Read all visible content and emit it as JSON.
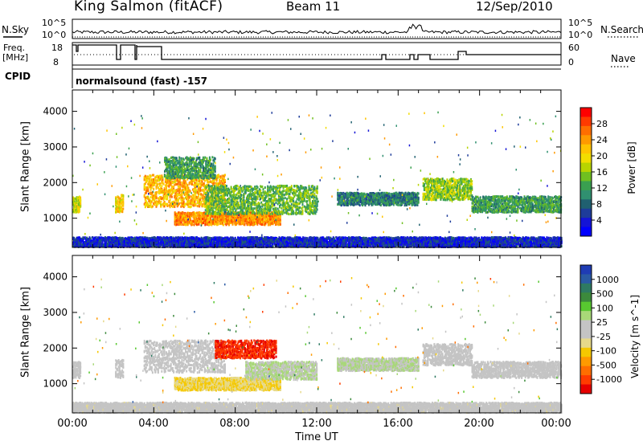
{
  "header": {
    "station": "King Salmon (fitACF)",
    "beam": "Beam 11",
    "date": "12/Sep/2010"
  },
  "status_panels": {
    "nsky_label": "N.Sky",
    "nsearch_label": "N.Search",
    "freq_label": "Freq.",
    "freq_unit": "[MHz]",
    "nave_label": "Nave",
    "cpid_label": "CPID",
    "cpid_text": "normalsound (fast) -157",
    "noise_ticks": [
      "10^5",
      "10^0"
    ],
    "freq_ticks": [
      "18",
      "8"
    ],
    "nave_ticks": [
      "60",
      "0"
    ]
  },
  "power_scale": {
    "label": "Power [dB]",
    "ticks": [
      "28",
      "24",
      "20",
      "16",
      "12",
      "8",
      "4"
    ],
    "colors": [
      "#ff0000",
      "#ff3a00",
      "#ff6e00",
      "#ff9a00",
      "#ffc400",
      "#f2dd00",
      "#b8d400",
      "#70c020",
      "#3aa050",
      "#309070",
      "#206070",
      "#1e3c9a",
      "#1414d6",
      "#0000ff"
    ]
  },
  "velocity_scale": {
    "label": "Velocity [m s^-1]",
    "ticks": [
      "1000",
      "500",
      "100",
      "25",
      "-25",
      "-100",
      "-500",
      "-1000"
    ],
    "colors": [
      "#1f3cb4",
      "#2a5aa4",
      "#2e7a62",
      "#3c8a3c",
      "#58c830",
      "#a8d878",
      "#c4c4c4",
      "#c4c4c4",
      "#e6d98a",
      "#f5c800",
      "#ff9a00",
      "#ff6e00",
      "#ff3c00",
      "#e60000"
    ]
  },
  "axes": {
    "ylabel": "Slant Range [km]",
    "yticks": [
      "1000",
      "2000",
      "3000",
      "4000"
    ],
    "xlabel": "Time UT",
    "xticks": [
      "00:00",
      "04:00",
      "08:00",
      "12:00",
      "16:00",
      "20:00",
      "00:00"
    ]
  },
  "chart_data": [
    {
      "type": "heatmap",
      "title": "Power",
      "xlabel": "Time UT",
      "ylabel": "Slant Range [km]",
      "xlim": [
        "00:00",
        "24:00"
      ],
      "ylim": [
        180,
        4600
      ],
      "colorbar": {
        "label": "Power [dB]",
        "ticks": [
          4,
          8,
          12,
          16,
          20,
          24,
          28
        ]
      },
      "regions": [
        {
          "t_start": 0.0,
          "t_end": 0.4,
          "range_min": 1150,
          "range_max": 1600,
          "power_db": 18
        },
        {
          "t_start": 2.1,
          "t_end": 2.5,
          "range_min": 1150,
          "range_max": 1650,
          "power_db": 20
        },
        {
          "t_start": 3.5,
          "t_end": 7.5,
          "range_min": 1300,
          "range_max": 2200,
          "power_db": 22
        },
        {
          "t_start": 5.0,
          "t_end": 10.2,
          "range_min": 800,
          "range_max": 1150,
          "power_db": 24
        },
        {
          "t_start": 6.5,
          "t_end": 12.0,
          "range_min": 1100,
          "range_max": 1900,
          "power_db": 14
        },
        {
          "t_start": 4.5,
          "t_end": 7.0,
          "range_min": 2100,
          "range_max": 2700,
          "power_db": 12
        },
        {
          "t_start": 13.0,
          "t_end": 17.0,
          "range_min": 1350,
          "range_max": 1700,
          "power_db": 10
        },
        {
          "t_start": 17.2,
          "t_end": 19.6,
          "range_min": 1500,
          "range_max": 2100,
          "power_db": 16
        },
        {
          "t_start": 19.6,
          "t_end": 24.0,
          "range_min": 1150,
          "range_max": 1600,
          "power_db": 12
        },
        {
          "t_start": 0.0,
          "t_end": 24.0,
          "range_min": 180,
          "range_max": 450,
          "power_db": 5
        }
      ]
    },
    {
      "type": "heatmap",
      "title": "Velocity",
      "xlabel": "Time UT",
      "ylabel": "Slant Range [km]",
      "xlim": [
        "00:00",
        "24:00"
      ],
      "ylim": [
        180,
        4600
      ],
      "colorbar": {
        "label": "Velocity [m s^-1]",
        "ticks": [
          -1000,
          -500,
          -100,
          -25,
          25,
          100,
          500,
          1000
        ]
      },
      "regions": [
        {
          "t_start": 0.0,
          "t_end": 0.4,
          "range_min": 1150,
          "range_max": 1600,
          "velocity": 0
        },
        {
          "t_start": 2.1,
          "t_end": 2.5,
          "range_min": 1150,
          "range_max": 1650,
          "velocity": 0
        },
        {
          "t_start": 3.5,
          "t_end": 7.5,
          "range_min": 1300,
          "range_max": 2200,
          "velocity": 0
        },
        {
          "t_start": 5.0,
          "t_end": 10.2,
          "range_min": 800,
          "range_max": 1150,
          "velocity": -300
        },
        {
          "t_start": 7.0,
          "t_end": 10.0,
          "range_min": 1700,
          "range_max": 2200,
          "velocity": -900
        },
        {
          "t_start": 8.5,
          "t_end": 12.0,
          "range_min": 1100,
          "range_max": 1600,
          "velocity": 150
        },
        {
          "t_start": 13.0,
          "t_end": 17.0,
          "range_min": 1350,
          "range_max": 1700,
          "velocity": 150
        },
        {
          "t_start": 17.2,
          "t_end": 19.6,
          "range_min": 1500,
          "range_max": 2100,
          "velocity": 0
        },
        {
          "t_start": 19.6,
          "t_end": 24.0,
          "range_min": 1150,
          "range_max": 1600,
          "velocity": 0
        },
        {
          "t_start": 0.0,
          "t_end": 24.0,
          "range_min": 180,
          "range_max": 450,
          "velocity": -60
        }
      ]
    }
  ]
}
